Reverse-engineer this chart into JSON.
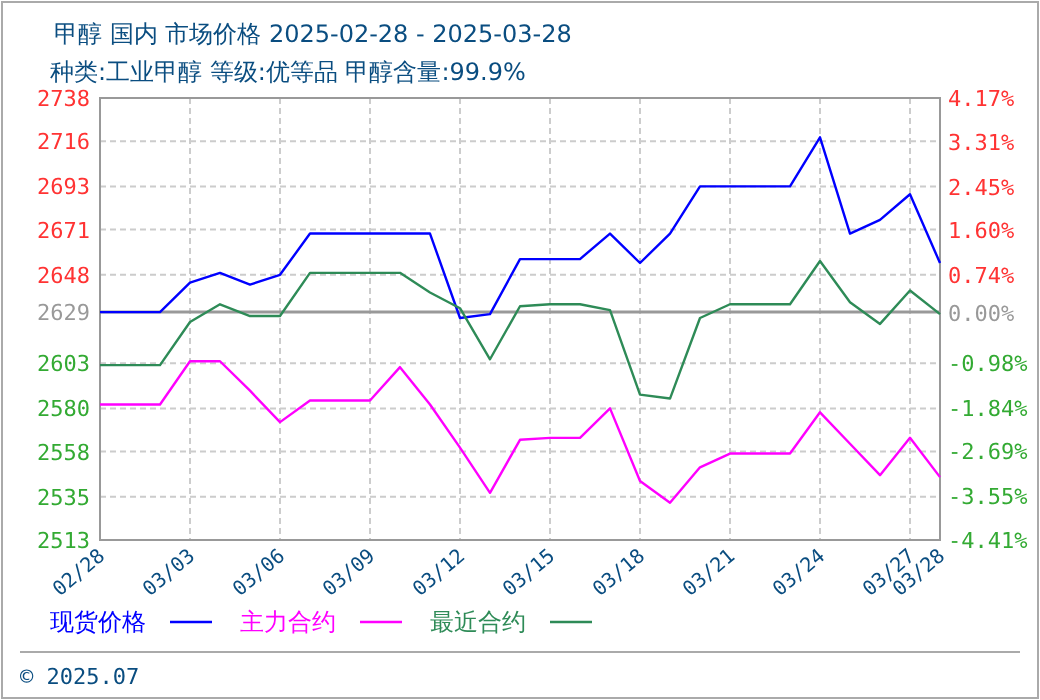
{
  "chart_data": {
    "type": "line",
    "title": "甲醇 国内 市场价格 2025-02-28 - 2025-03-28",
    "subtitle": "种类:工业甲醇 等级:优等品 甲醇含量:99.9%",
    "x": [
      "2025-02-28",
      "2025-03-01",
      "2025-03-02",
      "2025-03-03",
      "2025-03-04",
      "2025-03-05",
      "2025-03-06",
      "2025-03-07",
      "2025-03-08",
      "2025-03-09",
      "2025-03-10",
      "2025-03-11",
      "2025-03-12",
      "2025-03-13",
      "2025-03-14",
      "2025-03-15",
      "2025-03-16",
      "2025-03-17",
      "2025-03-18",
      "2025-03-19",
      "2025-03-20",
      "2025-03-21",
      "2025-03-22",
      "2025-03-23",
      "2025-03-24",
      "2025-03-25",
      "2025-03-26",
      "2025-03-27",
      "2025-03-28"
    ],
    "series": [
      {
        "name": "现货价格",
        "color": "#0000ff",
        "values": [
          2629,
          2629,
          2629,
          2644,
          2649,
          2643,
          2648,
          2669,
          2669,
          2669,
          2669,
          2669,
          2626,
          2628,
          2656,
          2656,
          2656,
          2669,
          2654,
          2669,
          2693,
          2693,
          2693,
          2693,
          2718,
          2669,
          2676,
          2689,
          2654
        ]
      },
      {
        "name": "主力合约",
        "color": "#ff00ff",
        "values": [
          2582,
          2582,
          2582,
          2604,
          2604,
          2589,
          2573,
          2584,
          2584,
          2584,
          2601,
          2582,
          2560,
          2537,
          2564,
          2565,
          2565,
          2580,
          2543,
          2532,
          2550,
          2557,
          2557,
          2557,
          2578,
          2562,
          2546,
          2565,
          2545
        ]
      },
      {
        "name": "最近合约",
        "color": "#2e8b57",
        "values": [
          2602,
          2602,
          2602,
          2624,
          2633,
          2627,
          2627,
          2649,
          2649,
          2649,
          2649,
          2639,
          2631,
          2605,
          2632,
          2633,
          2633,
          2630,
          2587,
          2585,
          2626,
          2633,
          2633,
          2633,
          2655,
          2634,
          2623,
          2640,
          2628
        ]
      }
    ],
    "xlim": [
      "2025-02-28",
      "2025-03-28"
    ],
    "xticks": [
      {
        "value": "2025-02-28",
        "label": "02/28"
      },
      {
        "value": "2025-03-03",
        "label": "03/03"
      },
      {
        "value": "2025-03-06",
        "label": "03/06"
      },
      {
        "value": "2025-03-09",
        "label": "03/09"
      },
      {
        "value": "2025-03-12",
        "label": "03/12"
      },
      {
        "value": "2025-03-15",
        "label": "03/15"
      },
      {
        "value": "2025-03-18",
        "label": "03/18"
      },
      {
        "value": "2025-03-21",
        "label": "03/21"
      },
      {
        "value": "2025-03-24",
        "label": "03/24"
      },
      {
        "value": "2025-03-27",
        "label": "03/27"
      },
      {
        "value": "2025-03-28",
        "label": "03/28"
      }
    ],
    "ylim": [
      2513,
      2738
    ],
    "yticks": [
      2513,
      2535,
      2558,
      2580,
      2603,
      2648,
      2671,
      2693,
      2716,
      2738
    ],
    "y2lim": [
      -4.41,
      4.17
    ],
    "y2ticks": [
      {
        "value": -4.41,
        "label": "-4.41%"
      },
      {
        "value": -3.55,
        "label": "-3.55%"
      },
      {
        "value": -2.69,
        "label": "-2.69%"
      },
      {
        "value": -1.84,
        "label": "-1.84%"
      },
      {
        "value": -0.98,
        "label": "-0.98%"
      },
      {
        "value": 0,
        "label": "0.00%"
      },
      {
        "value": 0.74,
        "label": "0.74%"
      },
      {
        "value": 1.6,
        "label": "1.60%"
      },
      {
        "value": 2.45,
        "label": "2.45%"
      },
      {
        "value": 3.31,
        "label": "3.31%"
      },
      {
        "value": 4.17,
        "label": "4.17%"
      }
    ],
    "ref_lines": [
      {
        "axis": "y",
        "value": 2629,
        "label": "2629",
        "color": "#999999"
      }
    ],
    "grid": true,
    "legend": "bottom",
    "line_style": "solid",
    "marker": "none",
    "annotations": [
      "© 2025.07"
    ]
  }
}
